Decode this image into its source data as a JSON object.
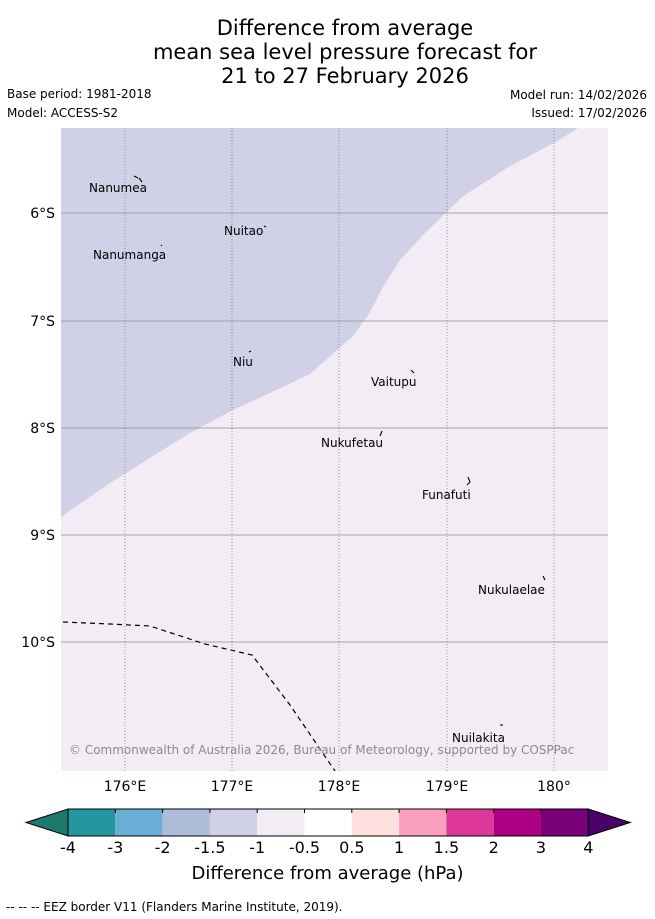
{
  "title": {
    "line1": "Difference from average",
    "line2": "mean sea level pressure forecast for",
    "line3": "21 to 27 February 2026"
  },
  "meta": {
    "base_period": "Base period: 1981-2018",
    "model": "Model: ACCESS-S2",
    "model_run": "Model run: 14/02/2026",
    "issued": "Issued: 17/02/2026"
  },
  "map": {
    "lat_labels": [
      "6°S",
      "7°S",
      "8°S",
      "9°S",
      "10°S"
    ],
    "lon_labels": [
      "176°E",
      "177°E",
      "178°E",
      "179°E",
      "180°"
    ],
    "islands": [
      "Nanumea",
      "Nuitao",
      "Nanumanga",
      "Niu",
      "Vaitupu",
      "Nukufetau",
      "Funafuti",
      "Nukulaelae",
      "Nuilakita"
    ],
    "copyright": "© Commonwealth of Australia 2026, Bureau of Meteorology, supported by COSPPac",
    "colors": {
      "region_minus_1_5_to_minus_1": "#d0d0e6",
      "region_minus_1_to_minus_0_5": "#f4ecf5",
      "frame": "#000000"
    }
  },
  "colorbar": {
    "ticks": [
      "-4",
      "-3",
      "-2",
      "-1.5",
      "-1",
      "-0.5",
      "0.5",
      "1",
      "1.5",
      "2",
      "3",
      "4"
    ],
    "colors": [
      "#1b7a6c",
      "#2596a0",
      "#6aaed6",
      "#adbcd9",
      "#d0d0e6",
      "#f4ecf5",
      "#ffffff",
      "#fde0de",
      "#f9a0bc",
      "#de379a",
      "#ad0082",
      "#7a007a",
      "#4a0068"
    ],
    "label": "Difference from average (hPa)"
  },
  "footer": "--  --  -- EEZ border V11 (Flanders Marine Institute, 2019)."
}
